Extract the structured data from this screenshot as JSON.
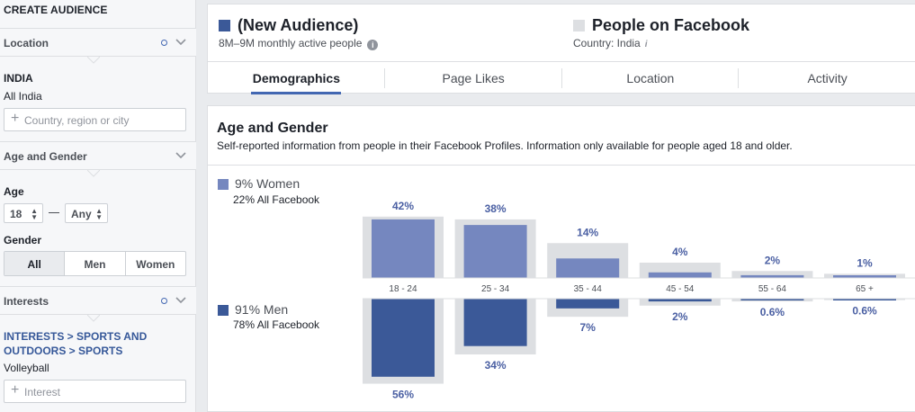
{
  "sidebar": {
    "title": "CREATE AUDIENCE",
    "location": {
      "label": "Location",
      "country": "INDIA",
      "scope": "All India",
      "placeholder": "Country, region or city"
    },
    "age_gender": {
      "label": "Age and Gender",
      "age_label": "Age",
      "age_from": "18",
      "age_to": "Any",
      "gender_label": "Gender",
      "gender_options": [
        "All",
        "Men",
        "Women"
      ],
      "gender_selected": "All"
    },
    "interests": {
      "label": "Interests",
      "path_line1": "INTERESTS > SPORTS AND",
      "path_line2": "OUTDOORS > SPORTS",
      "item": "Volleyball",
      "placeholder": "Interest"
    }
  },
  "header": {
    "audience_title": "(New Audience)",
    "audience_sub": "8M–9M monthly active people",
    "compare_title": "People on Facebook",
    "compare_sub": "Country: India",
    "tabs": [
      "Demographics",
      "Page Likes",
      "Location",
      "Activity"
    ],
    "active_tab": "Demographics"
  },
  "colors": {
    "women": "#7587bf",
    "men": "#3b5998",
    "compare": "#dddfe2",
    "accent": "#4267b2"
  },
  "icons": [
    "info-icon",
    "chevron-down-icon",
    "gear-icon",
    "plus-icon"
  ],
  "chart_data": {
    "type": "bar",
    "title": "Age and Gender",
    "subtitle": "Self-reported information from people in their Facebook Profiles. Information only available for people aged 18 and older.",
    "categories": [
      "18 - 24",
      "25 - 34",
      "35 - 44",
      "45 - 54",
      "55 - 64",
      "65 +"
    ],
    "series": [
      {
        "name": "Women",
        "total_label": "9% Women",
        "compare_label": "22% All Facebook",
        "values": [
          42,
          38,
          14,
          4,
          2,
          1
        ],
        "labels": [
          "42%",
          "38%",
          "14%",
          "4%",
          "2%",
          "1%"
        ],
        "facebook_values": [
          44,
          42,
          25,
          11,
          5,
          3
        ]
      },
      {
        "name": "Men",
        "total_label": "91% Men",
        "compare_label": "78% All Facebook",
        "values": [
          56,
          34,
          7,
          2,
          0.6,
          0.6
        ],
        "labels": [
          "56%",
          "34%",
          "7%",
          "2%",
          "0.6%",
          "0.6%"
        ],
        "facebook_values": [
          61,
          40,
          13,
          5,
          2,
          1
        ]
      }
    ]
  }
}
